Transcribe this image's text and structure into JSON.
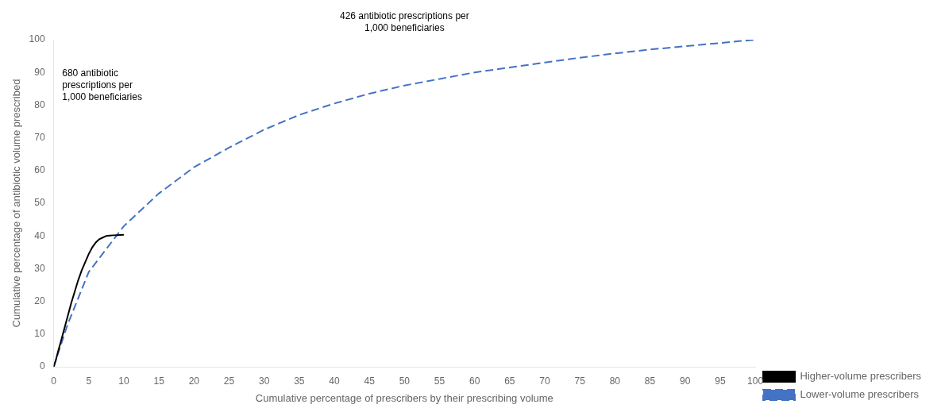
{
  "chart_data": {
    "type": "line",
    "xlabel": "Cumulative percentage of prescribers by their prescribing volume",
    "ylabel": "Cumulative percentage of antibiotic volume prescribed",
    "xlim": [
      0,
      100
    ],
    "ylim": [
      0,
      100
    ],
    "xticks": [
      0,
      5,
      10,
      15,
      20,
      25,
      30,
      35,
      40,
      45,
      50,
      55,
      60,
      65,
      70,
      75,
      80,
      85,
      90,
      95,
      100
    ],
    "yticks": [
      0,
      10,
      20,
      30,
      40,
      50,
      60,
      70,
      80,
      90,
      100
    ],
    "grid": false,
    "legend": "lower right",
    "annotations": [
      "426 antibiotic prescriptions per\n1,000 beneficiaries",
      "680 antibiotic\nprescriptions per\n1,000 beneficiaries"
    ],
    "series": [
      {
        "name": "Higher-volume prescribers",
        "color": "#000000",
        "line_style": "solid",
        "x": [
          0,
          0.3,
          0.6,
          1.0,
          1.5,
          2.0,
          2.5,
          3.0,
          3.5,
          4.0,
          4.5,
          5.0,
          5.5,
          6.0,
          6.5,
          7.0,
          7.5,
          8.0,
          8.5,
          9.0,
          9.5,
          10.0
        ],
        "values": [
          0,
          2,
          4.5,
          7.5,
          11.5,
          15.5,
          19.5,
          23.0,
          26.5,
          29.5,
          32.0,
          34.5,
          36.5,
          38.0,
          39.0,
          39.5,
          40.0,
          40.1,
          40.2,
          40.25,
          40.3,
          40.35
        ]
      },
      {
        "name": "Lower-volume prescribers",
        "color": "#4472c4",
        "line_style": "dashed",
        "x": [
          0,
          2,
          5,
          10,
          15,
          20,
          25,
          30,
          35,
          40,
          45,
          50,
          55,
          60,
          65,
          70,
          75,
          80,
          85,
          90,
          95,
          100
        ],
        "values": [
          0,
          13,
          29,
          43,
          53,
          61,
          67,
          72.5,
          77,
          80.5,
          83.5,
          86,
          88,
          90,
          91.5,
          93,
          94.5,
          95.8,
          97,
          98,
          99,
          100
        ]
      }
    ]
  }
}
